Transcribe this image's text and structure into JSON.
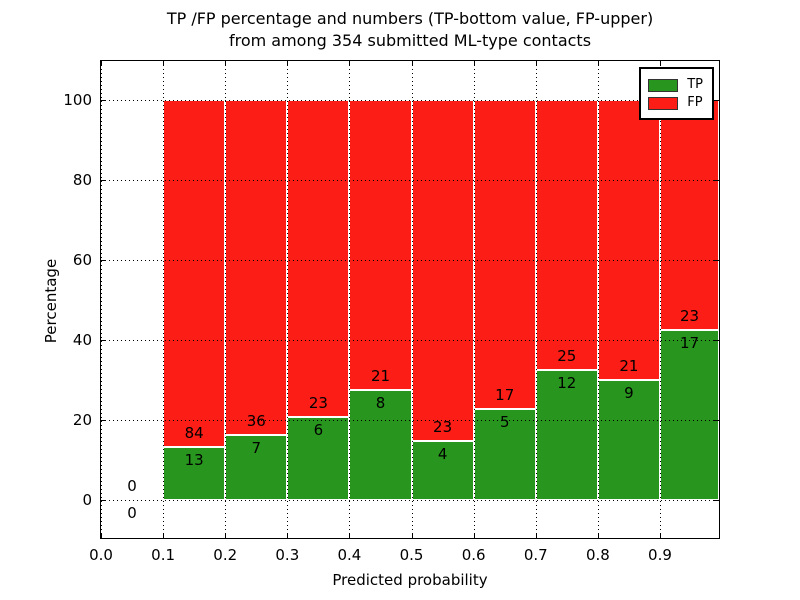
{
  "chart_data": {
    "type": "bar",
    "stacked": true,
    "orientation": "vertical",
    "title_line1": "TP /FP percentage and numbers (TP-bottom value, FP-upper)",
    "title_line2": "from among 354 submitted ML-type contacts",
    "xlabel": "Predicted probability",
    "ylabel": "Percentage",
    "total_contacts": 354,
    "xlim": [
      0.0,
      0.995
    ],
    "ylim": [
      -9.45,
      109.8
    ],
    "x_ticks": [
      0.0,
      0.1,
      0.2,
      0.3,
      0.4,
      0.5,
      0.6,
      0.7,
      0.8,
      0.9
    ],
    "x_tick_labels": [
      "0.0",
      "0.1",
      "0.2",
      "0.3",
      "0.4",
      "0.5",
      "0.6",
      "0.7",
      "0.8",
      "0.9"
    ],
    "y_ticks": [
      0,
      20,
      40,
      60,
      80,
      100
    ],
    "y_tick_labels": [
      "0",
      "20",
      "40",
      "60",
      "80",
      "100"
    ],
    "grid": "dotted",
    "legend_position": "upper right",
    "legend": [
      {
        "label": "TP",
        "color": "#28961e"
      },
      {
        "label": "FP",
        "color": "#fc1d16"
      }
    ],
    "series_note": "bars stacked to 100%; labels show raw counts, TP bottom / FP upper",
    "bins": [
      {
        "x0": 0.0,
        "x1": 0.1,
        "tp": 0,
        "fp": 0
      },
      {
        "x0": 0.1,
        "x1": 0.2,
        "tp": 13,
        "fp": 84
      },
      {
        "x0": 0.2,
        "x1": 0.3,
        "tp": 7,
        "fp": 36
      },
      {
        "x0": 0.3,
        "x1": 0.4,
        "tp": 6,
        "fp": 23
      },
      {
        "x0": 0.4,
        "x1": 0.5,
        "tp": 8,
        "fp": 21
      },
      {
        "x0": 0.5,
        "x1": 0.6,
        "tp": 4,
        "fp": 23
      },
      {
        "x0": 0.6,
        "x1": 0.7,
        "tp": 5,
        "fp": 17
      },
      {
        "x0": 0.7,
        "x1": 0.8,
        "tp": 12,
        "fp": 25
      },
      {
        "x0": 0.8,
        "x1": 0.9,
        "tp": 9,
        "fp": 21
      },
      {
        "x0": 0.9,
        "x1": 1.0,
        "tp": 17,
        "fp": 23
      }
    ]
  }
}
